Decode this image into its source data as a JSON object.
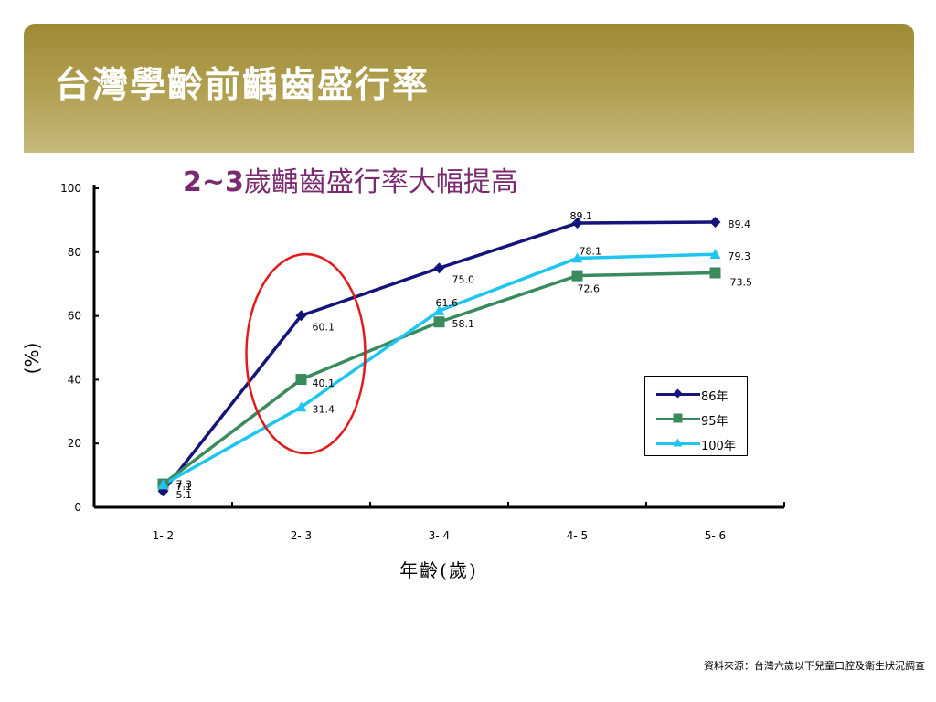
{
  "slide": {
    "title": "台灣學齡前齲齒盛行率",
    "subtitle_lead": "2~3",
    "subtitle_rest": "歲齲齒盛行率大幅提高",
    "source": "資料來源：台灣六歲以下兒童口腔及衛生狀況調查"
  },
  "colors": {
    "banner_dark": "#9c8a35",
    "banner_light": "#c7b97d",
    "subtitle": "#7a2a6e",
    "highlight_circle": "#e01b1b"
  },
  "chart_data": {
    "type": "line",
    "categories": [
      "1- 2",
      "2- 3",
      "3- 4",
      "4- 5",
      "5- 6"
    ],
    "xlabel": "年齡(歲)",
    "ylabel": "(%)",
    "ylim": [
      0,
      100
    ],
    "yticks": [
      0,
      20,
      40,
      60,
      80,
      100
    ],
    "legend_position": "right",
    "highlight": "circle around 2- 3",
    "series": [
      {
        "name": "86年",
        "values": [
          5.1,
          60.1,
          75.0,
          89.1,
          89.4
        ],
        "value_labels": [
          "5.1",
          "60.1",
          "75.0",
          "89.1",
          "89.4"
        ],
        "color": "#14147a",
        "marker": "diamond"
      },
      {
        "name": "95年",
        "values": [
          7.3,
          40.1,
          58.1,
          72.6,
          73.5
        ],
        "value_labels": [
          "7.3",
          "40.1",
          "58.1",
          "72.6",
          "73.5"
        ],
        "color": "#3a8a5e",
        "marker": "square"
      },
      {
        "name": "100年",
        "values": [
          7.1,
          31.4,
          61.6,
          78.1,
          79.3
        ],
        "value_labels": [
          "7.1",
          "31.4",
          "61.6",
          "78.1",
          "79.3"
        ],
        "color": "#1fc4f0",
        "marker": "triangle"
      }
    ]
  }
}
